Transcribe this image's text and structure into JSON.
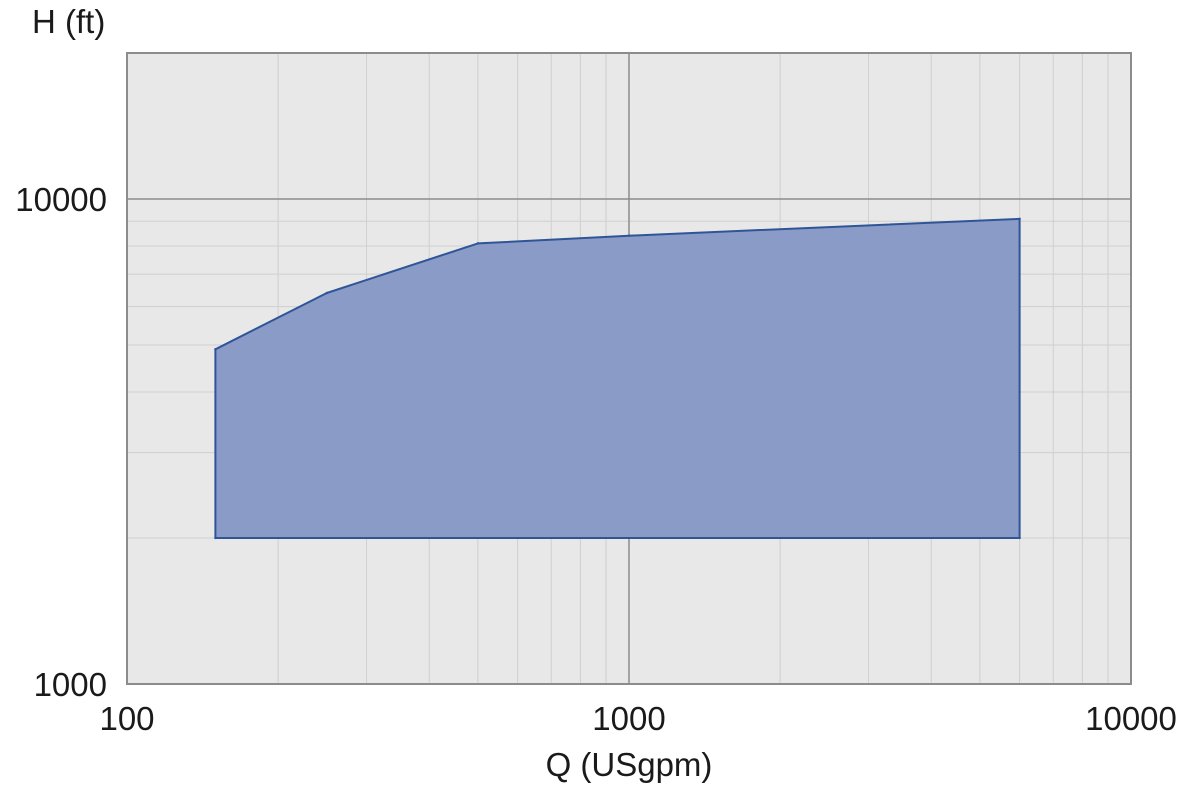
{
  "chart_data": {
    "type": "area",
    "xlabel": "Q (USgpm)",
    "ylabel": "H (ft)",
    "xscale": "log",
    "yscale": "log",
    "xlim": [
      100,
      10000
    ],
    "ylim": [
      1000,
      20000
    ],
    "x_ticks": [
      "100",
      "1000",
      "10000"
    ],
    "y_ticks": [
      "1000",
      "10000"
    ],
    "grid": true,
    "series": [
      {
        "points": [
          {
            "x": 150,
            "y": 2000
          },
          {
            "x": 150,
            "y": 4900
          },
          {
            "x": 250,
            "y": 6400
          },
          {
            "x": 500,
            "y": 8100
          },
          {
            "x": 1000,
            "y": 8400
          },
          {
            "x": 6000,
            "y": 9100
          },
          {
            "x": 6000,
            "y": 2000
          }
        ]
      }
    ],
    "colors": {
      "fill": "#8a9bc8",
      "stroke": "#2f5597",
      "plot_background": "#e8e8e8",
      "major_grid": "#8c8c8c",
      "minor_grid": "#cfcfcf"
    }
  }
}
